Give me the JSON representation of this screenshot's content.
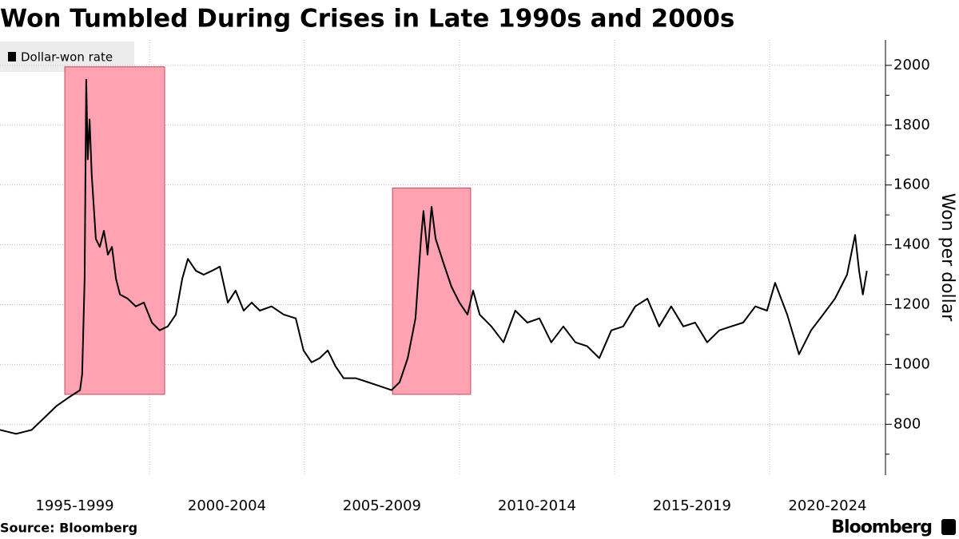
{
  "chart_data": {
    "type": "line",
    "title": "Won Tumbled During Crises in Late 1990s and 2000s",
    "y_axis_label": "Won per dollar",
    "source": "Source: Bloomberg",
    "brand": "Bloomberg",
    "x": [
      1995.18,
      1995.7,
      1996.2,
      1996.6,
      1997.0,
      1997.37,
      1997.76,
      1997.83,
      1997.91,
      1997.96,
      1998.01,
      1998.07,
      1998.14,
      1998.27,
      1998.4,
      1998.53,
      1998.66,
      1998.79,
      1998.92,
      1999.05,
      1999.3,
      1999.56,
      1999.82,
      2000.08,
      2000.33,
      2000.59,
      2000.85,
      2001.06,
      2001.24,
      2001.5,
      2001.75,
      2002.01,
      2002.27,
      2002.53,
      2002.78,
      2003.04,
      2003.3,
      2003.56,
      2003.94,
      2004.33,
      2004.72,
      2004.97,
      2005.23,
      2005.49,
      2005.75,
      2006.0,
      2006.26,
      2006.65,
      2007.04,
      2007.42,
      2007.81,
      2008.07,
      2008.33,
      2008.58,
      2008.76,
      2008.84,
      2008.97,
      2009.1,
      2009.23,
      2009.48,
      2009.74,
      2010.0,
      2010.26,
      2010.44,
      2010.65,
      2011.03,
      2011.42,
      2011.8,
      2012.19,
      2012.58,
      2012.96,
      2013.35,
      2013.74,
      2014.12,
      2014.51,
      2014.9,
      2015.28,
      2015.67,
      2016.06,
      2016.44,
      2016.83,
      2017.22,
      2017.6,
      2017.99,
      2018.38,
      2018.76,
      2019.15,
      2019.54,
      2019.92,
      2020.18,
      2020.57,
      2020.95,
      2021.34,
      2021.73,
      2022.11,
      2022.5,
      2022.76,
      2022.89,
      2023.01,
      2023.14
    ],
    "series": [
      {
        "name": "Dollar-won rate",
        "color": "#000000",
        "values": [
          781,
          768,
          781,
          821,
          861,
          888,
          914,
          967,
          1287,
          1952,
          1686,
          1819,
          1633,
          1420,
          1393,
          1447,
          1367,
          1393,
          1287,
          1234,
          1220,
          1194,
          1207,
          1140,
          1114,
          1127,
          1167,
          1287,
          1353,
          1313,
          1300,
          1313,
          1327,
          1207,
          1247,
          1180,
          1207,
          1180,
          1194,
          1167,
          1154,
          1047,
          1007,
          1021,
          1047,
          994,
          954,
          954,
          941,
          928,
          914,
          941,
          1021,
          1154,
          1420,
          1513,
          1367,
          1527,
          1420,
          1340,
          1260,
          1207,
          1167,
          1247,
          1167,
          1127,
          1074,
          1180,
          1140,
          1154,
          1074,
          1127,
          1074,
          1061,
          1021,
          1114,
          1127,
          1194,
          1220,
          1127,
          1194,
          1127,
          1140,
          1074,
          1114,
          1127,
          1140,
          1194,
          1180,
          1273,
          1167,
          1034,
          1114,
          1167,
          1220,
          1300,
          1433,
          1313,
          1234,
          1313
        ]
      }
    ],
    "xlim": [
      1995.18,
      2023.74
    ],
    "xticks": [
      2000,
      2005,
      2010,
      2015,
      2020
    ],
    "periods": [
      {
        "label": "1995-1999",
        "start": 1995,
        "end": 2000
      },
      {
        "label": "2000-2004",
        "start": 2000,
        "end": 2005
      },
      {
        "label": "2005-2009",
        "start": 2005,
        "end": 2010
      },
      {
        "label": "2010-2014",
        "start": 2010,
        "end": 2015
      },
      {
        "label": "2015-2019",
        "start": 2015,
        "end": 2020
      },
      {
        "label": "2020-2024",
        "start": 2020,
        "end": 2025
      }
    ],
    "ylim": [
      630,
      2085
    ],
    "yticks": [
      800,
      1000,
      1200,
      1400,
      1600,
      1800,
      2000
    ],
    "minor_yticks": [
      700,
      900,
      1100,
      1300,
      1500,
      1700,
      1900
    ],
    "highlights": [
      {
        "x": [
          1997.27,
          2000.49
        ],
        "y": [
          900,
          1995
        ],
        "color": "#ffa3b2"
      },
      {
        "x": [
          2007.84,
          2010.36
        ],
        "y": [
          900,
          1590
        ],
        "color": "#ffa3b2"
      }
    ],
    "grid": true
  }
}
